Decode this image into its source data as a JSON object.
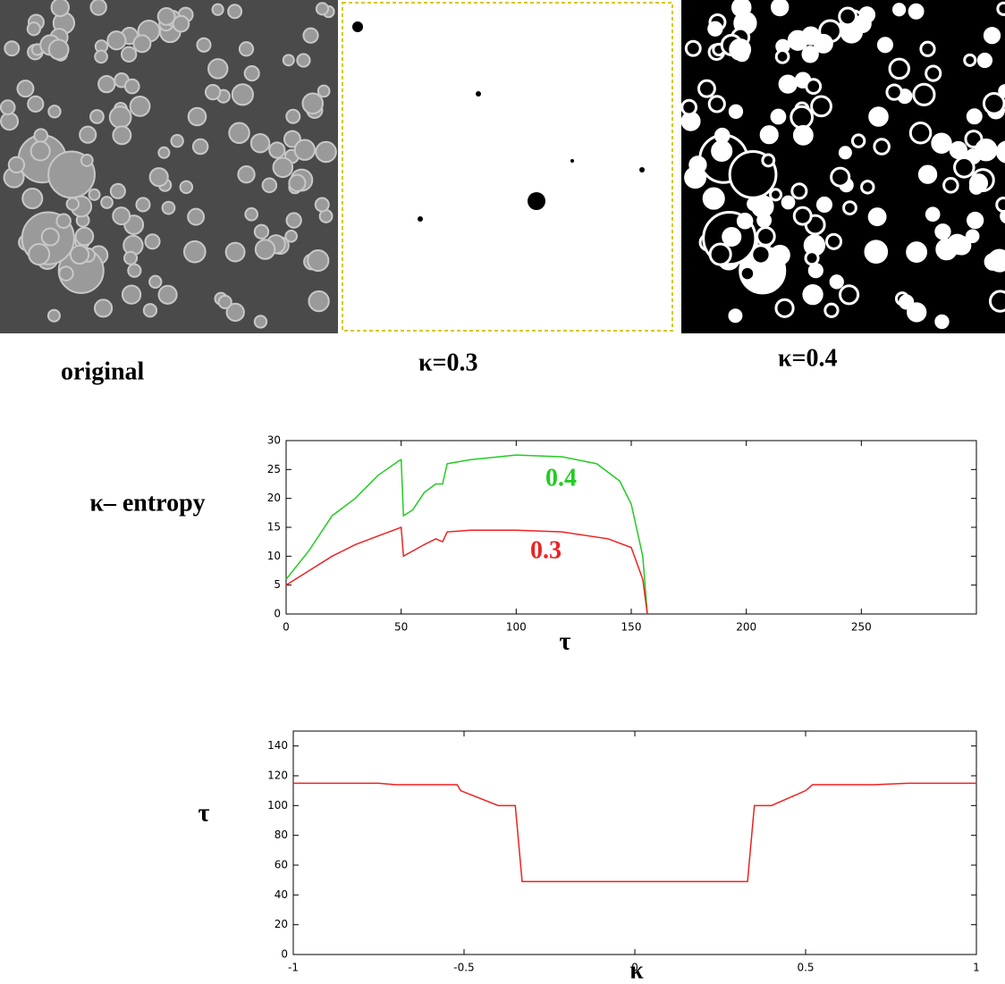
{
  "panels": [
    {
      "caption": "original"
    },
    {
      "caption": "κ=0.3"
    },
    {
      "caption": "κ=0.4"
    }
  ],
  "chart_data": [
    {
      "type": "line",
      "ylabel": "κ– entropy",
      "xlabel": "τ",
      "xlim": [
        0,
        300
      ],
      "xticks": [
        0,
        50,
        100,
        150,
        200,
        250
      ],
      "ylim": [
        0,
        30
      ],
      "yticks": [
        0,
        5,
        10,
        15,
        20,
        25,
        30
      ],
      "series": [
        {
          "name": "0.4",
          "color": "#22cc22",
          "x": [
            0,
            10,
            20,
            30,
            40,
            49,
            50,
            51,
            55,
            60,
            65,
            68,
            70,
            80,
            100,
            120,
            135,
            145,
            150,
            155,
            157
          ],
          "values": [
            6,
            11,
            17,
            20,
            24,
            26.5,
            26.7,
            17,
            18,
            21,
            22.5,
            22.5,
            26,
            26.7,
            27.5,
            27.2,
            26,
            23,
            19,
            10,
            0
          ]
        },
        {
          "name": "0.3",
          "color": "#ee2222",
          "x": [
            0,
            10,
            20,
            30,
            40,
            50,
            51,
            60,
            65,
            68,
            70,
            80,
            100,
            120,
            140,
            150,
            155,
            157
          ],
          "values": [
            5,
            7.5,
            10,
            12,
            13.5,
            15,
            10,
            12,
            13,
            12.5,
            14.2,
            14.5,
            14.5,
            14.2,
            13,
            11.5,
            6,
            0
          ]
        }
      ]
    },
    {
      "type": "line",
      "ylabel": "τ",
      "xlabel": "κ",
      "xlim": [
        -1,
        1
      ],
      "xticks": [
        -1,
        -0.5,
        0,
        0.5,
        1
      ],
      "ylim": [
        0,
        150
      ],
      "yticks": [
        0,
        20,
        40,
        60,
        80,
        100,
        120,
        140
      ],
      "series": [
        {
          "color": "#ee2222",
          "x": [
            -1,
            -0.75,
            -0.7,
            -0.52,
            -0.51,
            -0.4,
            -0.35,
            -0.33,
            0.33,
            0.35,
            0.4,
            0.5,
            0.52,
            0.7,
            0.8,
            1
          ],
          "values": [
            115,
            115,
            114,
            114,
            110,
            100,
            100,
            49,
            49,
            100,
            100,
            110,
            114,
            114,
            115,
            115
          ]
        }
      ]
    }
  ]
}
